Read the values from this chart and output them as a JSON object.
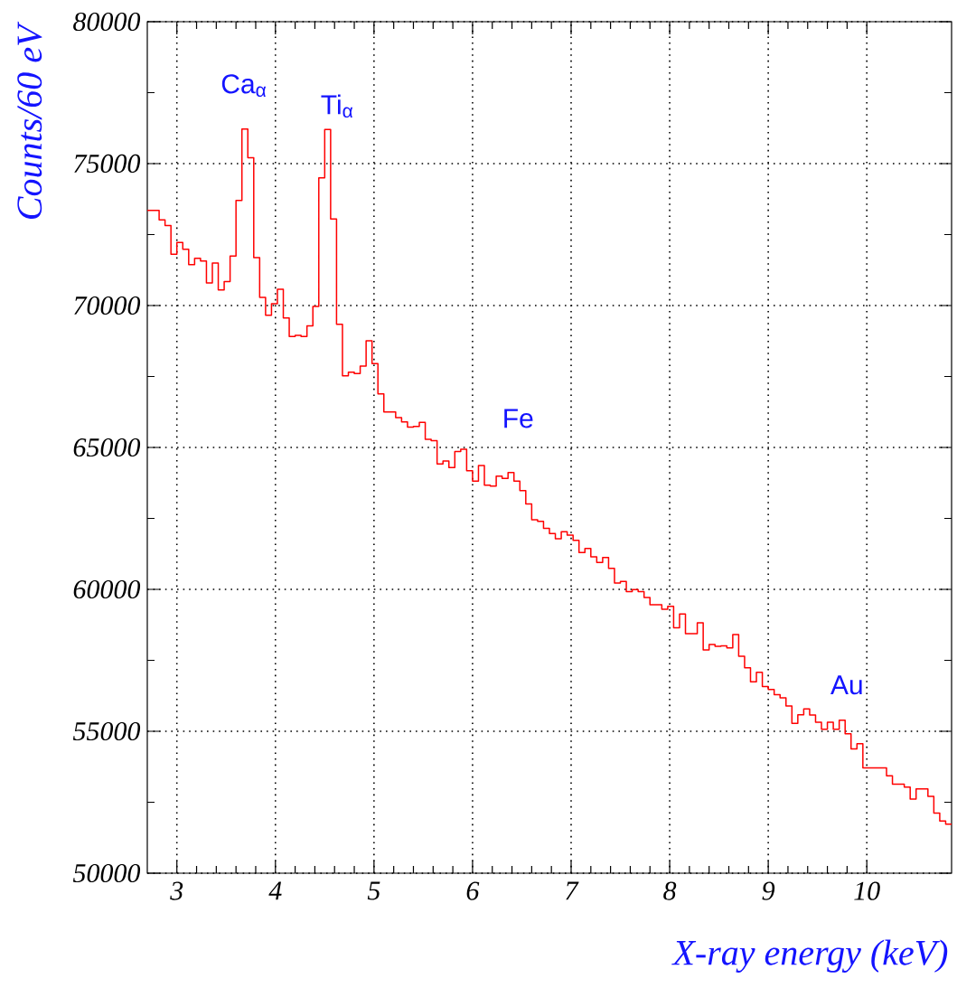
{
  "chart_data": {
    "type": "histogram",
    "xlabel": "X-ray energy (keV)",
    "ylabel": "Counts/60 eV",
    "bins": [
      2.7,
      2.76,
      2.82,
      2.88,
      2.94,
      3,
      3.06,
      3.12,
      3.18,
      3.24,
      3.3,
      3.36,
      3.42,
      3.48,
      3.54,
      3.6,
      3.66,
      3.72,
      3.78,
      3.84,
      3.9,
      3.96,
      4.02,
      4.08,
      4.14,
      4.2,
      4.26,
      4.32,
      4.38,
      4.44,
      4.5,
      4.56,
      4.62,
      4.68,
      4.74,
      4.8,
      4.86,
      4.92,
      4.98,
      5.04,
      5.1,
      5.16,
      5.22,
      5.28,
      5.34,
      5.4,
      5.46,
      5.52,
      5.58,
      5.64,
      5.7,
      5.76,
      5.82,
      5.88,
      5.94,
      6,
      6.06,
      6.12,
      6.18,
      6.24,
      6.3,
      6.36,
      6.42,
      6.48,
      6.54,
      6.6,
      6.66,
      6.72,
      6.78,
      6.84,
      6.9,
      6.96,
      7.02,
      7.08,
      7.14,
      7.2,
      7.26,
      7.32,
      7.38,
      7.44,
      7.5,
      7.56,
      7.62,
      7.68,
      7.74,
      7.8,
      7.86,
      7.92,
      7.98,
      8.04,
      8.1,
      8.16,
      8.22,
      8.28,
      8.34,
      8.4,
      8.46,
      8.52,
      8.58,
      8.64,
      8.7,
      8.76,
      8.82,
      8.88,
      8.94,
      9,
      9.06,
      9.12,
      9.18,
      9.24,
      9.3,
      9.36,
      9.42,
      9.48,
      9.54,
      9.6,
      9.66,
      9.72,
      9.78,
      9.84,
      9.9,
      9.96,
      10.02,
      10.08,
      10.14,
      10.2,
      10.26,
      10.32,
      10.38,
      10.44,
      10.5,
      10.56,
      10.62,
      10.68,
      10.74,
      10.8,
      10.86
    ],
    "values": [
      73350,
      73350,
      73020,
      72820,
      71810,
      72220,
      71980,
      71440,
      71660,
      71570,
      70800,
      71500,
      70550,
      70840,
      71740,
      73700,
      76220,
      75210,
      71690,
      70290,
      69660,
      70060,
      70570,
      69560,
      68910,
      68950,
      68910,
      69280,
      69970,
      74500,
      76200,
      73050,
      69340,
      67520,
      67650,
      67600,
      67870,
      68760,
      67950,
      66890,
      66250,
      66250,
      66050,
      65900,
      65720,
      65740,
      65880,
      65290,
      65240,
      64420,
      64520,
      64290,
      64860,
      64940,
      64180,
      63810,
      64360,
      63670,
      63640,
      63990,
      63910,
      64120,
      63810,
      63480,
      63010,
      62450,
      62400,
      62150,
      61970,
      61780,
      62030,
      61910,
      61730,
      61300,
      61440,
      61150,
      60950,
      61120,
      60740,
      60220,
      60280,
      59920,
      59990,
      59920,
      59710,
      59460,
      59460,
      59300,
      59400,
      58650,
      59130,
      58440,
      58440,
      58820,
      57870,
      58060,
      57990,
      58010,
      57940,
      58410,
      57640,
      57240,
      56740,
      57080,
      56580,
      56470,
      56290,
      56180,
      55890,
      55280,
      55580,
      55790,
      55570,
      55320,
      55070,
      55320,
      55070,
      55390,
      54910,
      54380,
      54560,
      53710,
      53710,
      53710,
      53710,
      53430,
      53140,
      53140,
      53030,
      52610,
      52970,
      52970,
      52710,
      52120,
      51840,
      51730
    ],
    "color": "#ff0000",
    "xlim": [
      2.7,
      10.86
    ],
    "ylim": [
      50000,
      80000
    ],
    "xticks": [
      3,
      4,
      5,
      6,
      7,
      8,
      9,
      10
    ],
    "yticks": [
      50000,
      55000,
      60000,
      65000,
      70000,
      75000,
      80000
    ],
    "grid": true,
    "annotations": [
      "Ca$_{α}$",
      "Ti$_{α}$",
      "Fe",
      "Au"
    ]
  }
}
